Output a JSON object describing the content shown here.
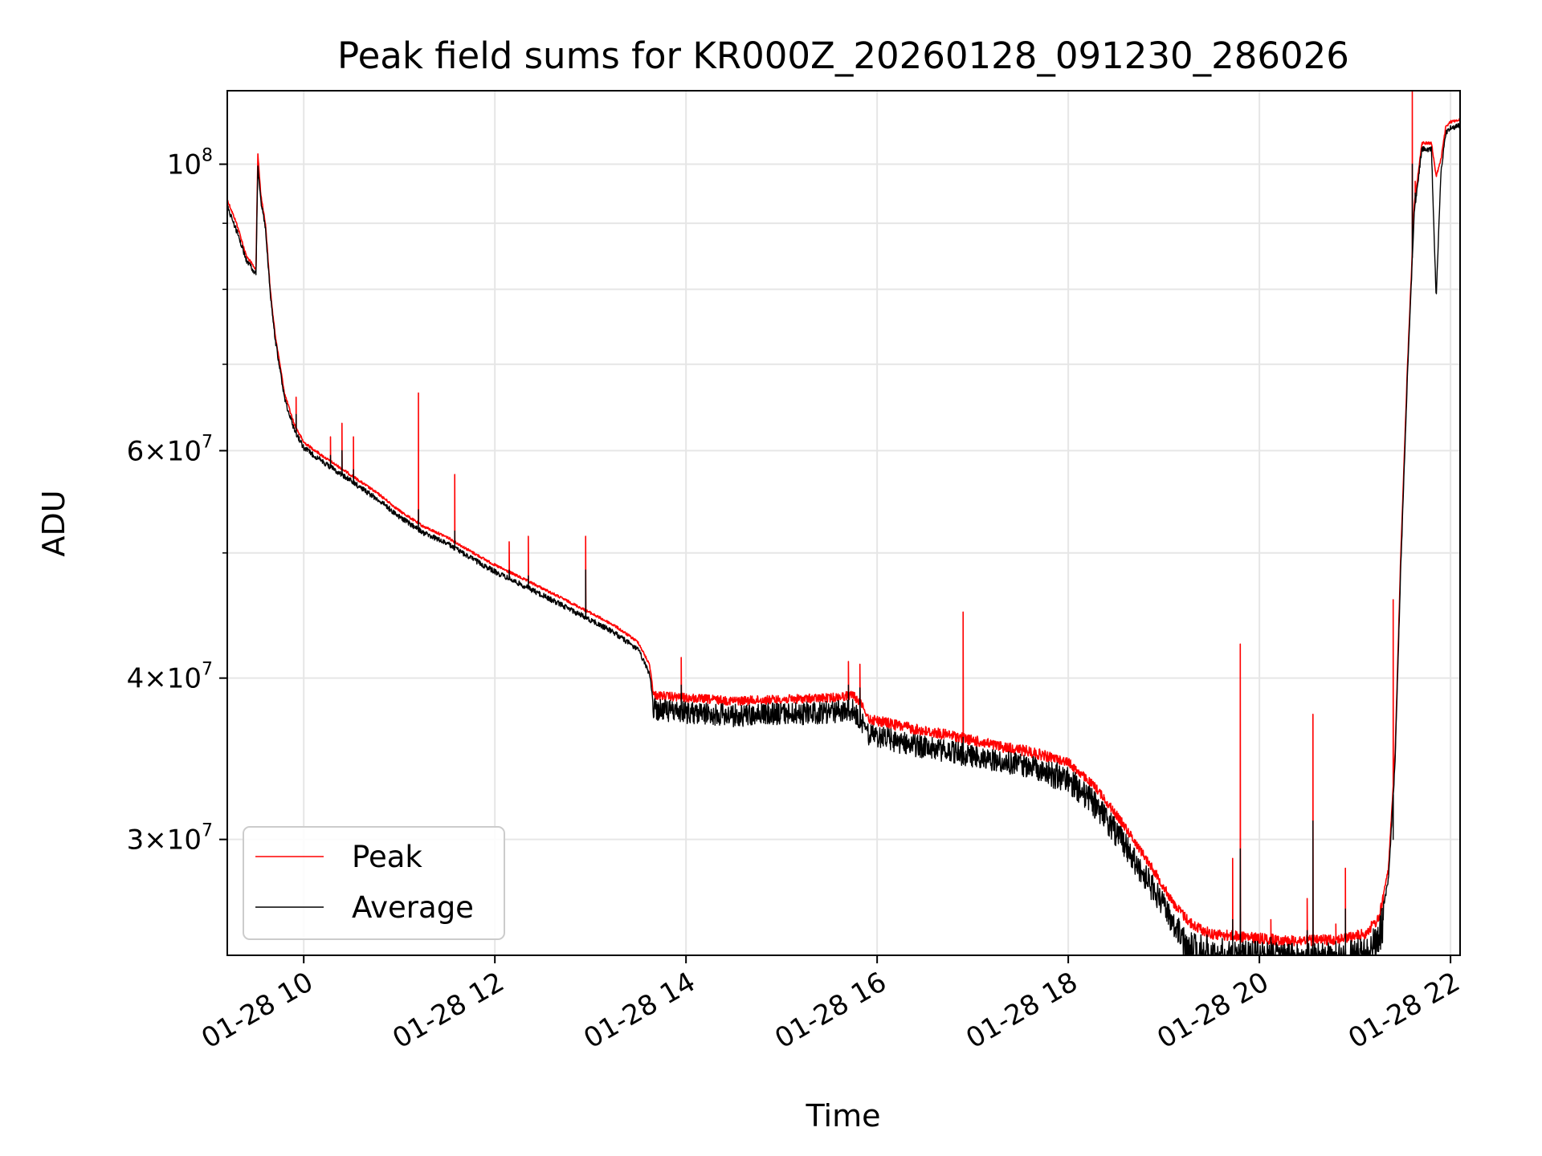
{
  "chart_data": {
    "type": "line",
    "title": "Peak field sums for KR000Z_20260128_091230_286026",
    "xlabel": "Time",
    "ylabel": "ADU",
    "yscale": "log",
    "xlim_hours": [
      9.2,
      22.1
    ],
    "ylim": [
      24400000,
      114000000
    ],
    "grid": true,
    "legend_position": "lower-left",
    "x_ticks": [
      {
        "value": 10,
        "label": "01-28 10"
      },
      {
        "value": 12,
        "label": "01-28 12"
      },
      {
        "value": 14,
        "label": "01-28 14"
      },
      {
        "value": 16,
        "label": "01-28 16"
      },
      {
        "value": 18,
        "label": "01-28 18"
      },
      {
        "value": 20,
        "label": "01-28 20"
      },
      {
        "value": 22,
        "label": "01-28 22"
      }
    ],
    "y_ticks": [
      {
        "value": 30000000,
        "mant": "3",
        "exp": "7"
      },
      {
        "value": 40000000,
        "mant": "4",
        "exp": "7"
      },
      {
        "value": 60000000,
        "mant": "6",
        "exp": "7"
      },
      {
        "value": 100000000,
        "mant": "10",
        "exp": "8"
      }
    ],
    "y_minor_ticks": [
      50000000,
      70000000,
      80000000,
      90000000
    ],
    "series": [
      {
        "name": "Peak",
        "color": "#ff0000",
        "x": [
          9.2,
          9.3,
          9.4,
          9.5,
          9.52,
          9.55,
          9.6,
          9.65,
          9.7,
          9.8,
          9.9,
          10.0,
          10.2,
          10.5,
          10.8,
          11.0,
          11.25,
          11.5,
          11.75,
          12.0,
          12.25,
          12.5,
          12.75,
          13.0,
          13.25,
          13.5,
          13.62,
          13.66,
          14.0,
          14.5,
          15.0,
          15.5,
          15.75,
          15.85,
          15.88,
          16.2,
          16.5,
          16.8,
          17.0,
          17.3,
          17.6,
          18.0,
          18.3,
          18.6,
          18.9,
          19.1,
          19.3,
          19.5,
          20.0,
          20.3,
          20.6,
          20.9,
          21.1,
          21.25,
          21.35,
          21.42,
          21.48,
          21.55,
          21.62,
          21.7,
          21.8,
          21.85,
          21.9,
          21.95,
          22.0,
          22.1
        ],
        "y": [
          94000000,
          90000000,
          85000000,
          83000000,
          102000000,
          95000000,
          90000000,
          80000000,
          74000000,
          66500000,
          63000000,
          61000000,
          59500000,
          57500000,
          55500000,
          54000000,
          52500000,
          51500000,
          50200000,
          49000000,
          48000000,
          47000000,
          46000000,
          45000000,
          44000000,
          42700000,
          41000000,
          39000000,
          38800000,
          38600000,
          38700000,
          38800000,
          39000000,
          38200000,
          37500000,
          37000000,
          36600000,
          36300000,
          36000000,
          35600000,
          35300000,
          34600000,
          33000000,
          30800000,
          28500000,
          26900000,
          25900000,
          25500000,
          25300000,
          25200000,
          25200000,
          25300000,
          25500000,
          26200000,
          28500000,
          35000000,
          50000000,
          70000000,
          93000000,
          104000000,
          104000000,
          98000000,
          101000000,
          107000000,
          108000000,
          108500000
        ]
      },
      {
        "name": "Average",
        "color": "#000000",
        "x": [
          9.2,
          9.3,
          9.4,
          9.5,
          9.52,
          9.55,
          9.6,
          9.65,
          9.7,
          9.8,
          9.9,
          10.0,
          10.2,
          10.5,
          10.8,
          11.0,
          11.25,
          11.5,
          11.75,
          12.0,
          12.25,
          12.5,
          12.75,
          13.0,
          13.25,
          13.5,
          13.62,
          13.66,
          14.0,
          14.5,
          15.0,
          15.5,
          15.75,
          15.85,
          15.88,
          16.2,
          16.5,
          16.8,
          17.0,
          17.3,
          17.6,
          18.0,
          18.3,
          18.6,
          18.9,
          19.1,
          19.3,
          19.5,
          20.0,
          20.3,
          20.6,
          20.9,
          21.1,
          21.25,
          21.35,
          21.42,
          21.48,
          21.55,
          21.62,
          21.7,
          21.8,
          21.85,
          21.9,
          21.95,
          22.0,
          22.1
        ],
        "y": [
          93000000,
          89000000,
          84500000,
          82500000,
          100000000,
          94000000,
          89500000,
          79500000,
          73500000,
          66000000,
          62500000,
          60500000,
          59000000,
          57000000,
          55000000,
          53500000,
          52000000,
          51000000,
          49700000,
          48500000,
          47500000,
          46500000,
          45500000,
          44500000,
          43500000,
          42200000,
          40400000,
          38300000,
          38100000,
          37900000,
          38000000,
          38100000,
          38300000,
          37300000,
          36700000,
          36200000,
          35800000,
          35500000,
          35200000,
          34900000,
          34600000,
          33900000,
          32300000,
          30100000,
          27800000,
          26200000,
          25200000,
          24900000,
          24700000,
          24600000,
          24600000,
          24700000,
          24900000,
          25600000,
          28000000,
          34500000,
          49000000,
          69000000,
          92000000,
          103000000,
          103000000,
          79000000,
          99000000,
          106000000,
          107000000,
          107500000
        ]
      }
    ],
    "spikes": [
      {
        "x": 9.92,
        "peak": 66000000,
        "avg": 64000000
      },
      {
        "x": 10.28,
        "peak": 61500000,
        "avg": 59500000
      },
      {
        "x": 10.4,
        "peak": 63000000,
        "avg": 60000000
      },
      {
        "x": 10.52,
        "peak": 61500000,
        "avg": 58000000
      },
      {
        "x": 11.2,
        "peak": 66500000,
        "avg": 54000000
      },
      {
        "x": 11.58,
        "peak": 57500000,
        "avg": 52000000
      },
      {
        "x": 12.15,
        "peak": 51000000,
        "avg": 48500000
      },
      {
        "x": 12.35,
        "peak": 51500000,
        "avg": 48000000
      },
      {
        "x": 12.95,
        "peak": 51500000,
        "avg": 48500000
      },
      {
        "x": 13.95,
        "peak": 41500000,
        "avg": 39500000
      },
      {
        "x": 15.7,
        "peak": 41200000,
        "avg": 39500000
      },
      {
        "x": 15.82,
        "peak": 41000000,
        "avg": 39300000
      },
      {
        "x": 16.9,
        "peak": 45000000,
        "avg": 36000000
      },
      {
        "x": 19.72,
        "peak": 29000000,
        "avg": 26000000
      },
      {
        "x": 19.8,
        "peak": 42500000,
        "avg": 29500000
      },
      {
        "x": 20.12,
        "peak": 26000000,
        "avg": 25200000
      },
      {
        "x": 20.5,
        "peak": 27000000,
        "avg": 25500000
      },
      {
        "x": 20.56,
        "peak": 37500000,
        "avg": 31000000
      },
      {
        "x": 20.8,
        "peak": 25800000,
        "avg": 25000000
      },
      {
        "x": 20.9,
        "peak": 28500000,
        "avg": 26500000
      },
      {
        "x": 21.4,
        "peak": 46000000,
        "avg": 30000000
      },
      {
        "x": 21.6,
        "peak": 114000000,
        "avg": 100000000
      },
      {
        "x": 21.63,
        "peak": 97000000,
        "avg": 95000000
      }
    ],
    "noise": [
      {
        "from": 13.65,
        "to": 15.85,
        "amp_peak": 0.01,
        "amp_avg": 0.025
      },
      {
        "from": 15.9,
        "to": 17.8,
        "amp_peak": 0.012,
        "amp_avg": 0.025
      },
      {
        "from": 17.8,
        "to": 19.2,
        "amp_peak": 0.01,
        "amp_avg": 0.03
      },
      {
        "from": 19.2,
        "to": 21.3,
        "amp_peak": 0.012,
        "amp_avg": 0.045
      }
    ]
  }
}
